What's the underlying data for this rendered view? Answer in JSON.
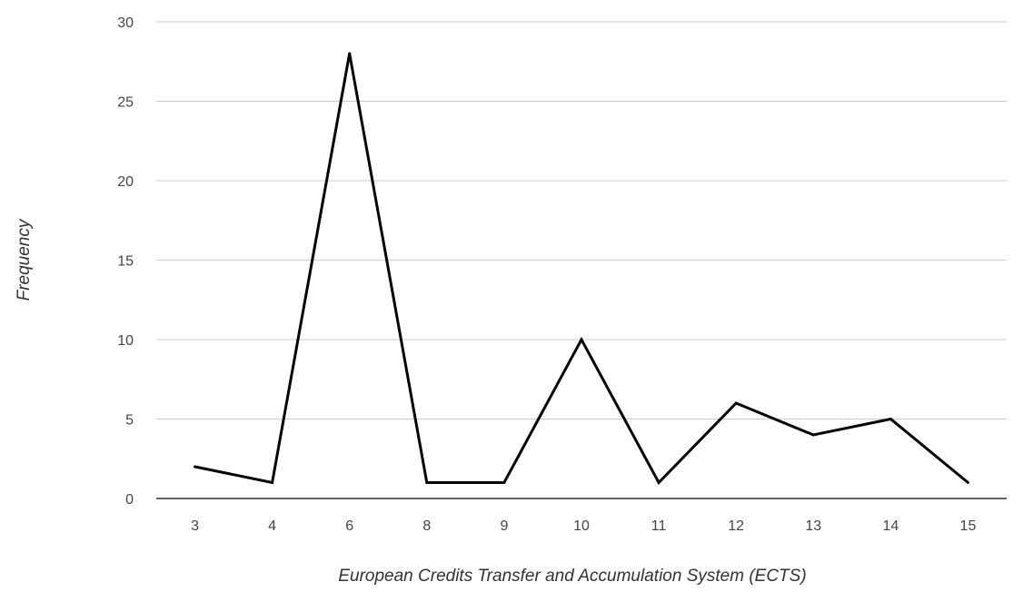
{
  "chart_data": {
    "type": "line",
    "categories": [
      "3",
      "4",
      "6",
      "8",
      "9",
      "10",
      "11",
      "12",
      "13",
      "14",
      "15"
    ],
    "series": [
      {
        "values": [
          2,
          1,
          28,
          1,
          1,
          10,
          1,
          6,
          4,
          5,
          1
        ]
      }
    ],
    "title": "",
    "xlabel": "European Credits Transfer and Accumulation System (ECTS)",
    "ylabel": "Frequency",
    "ylim": [
      0,
      30
    ],
    "yticks": [
      0,
      5,
      10,
      15,
      20,
      25,
      30
    ],
    "grid": true,
    "legend": "none",
    "line_color": "#000000",
    "grid_color": "#cccccc"
  }
}
